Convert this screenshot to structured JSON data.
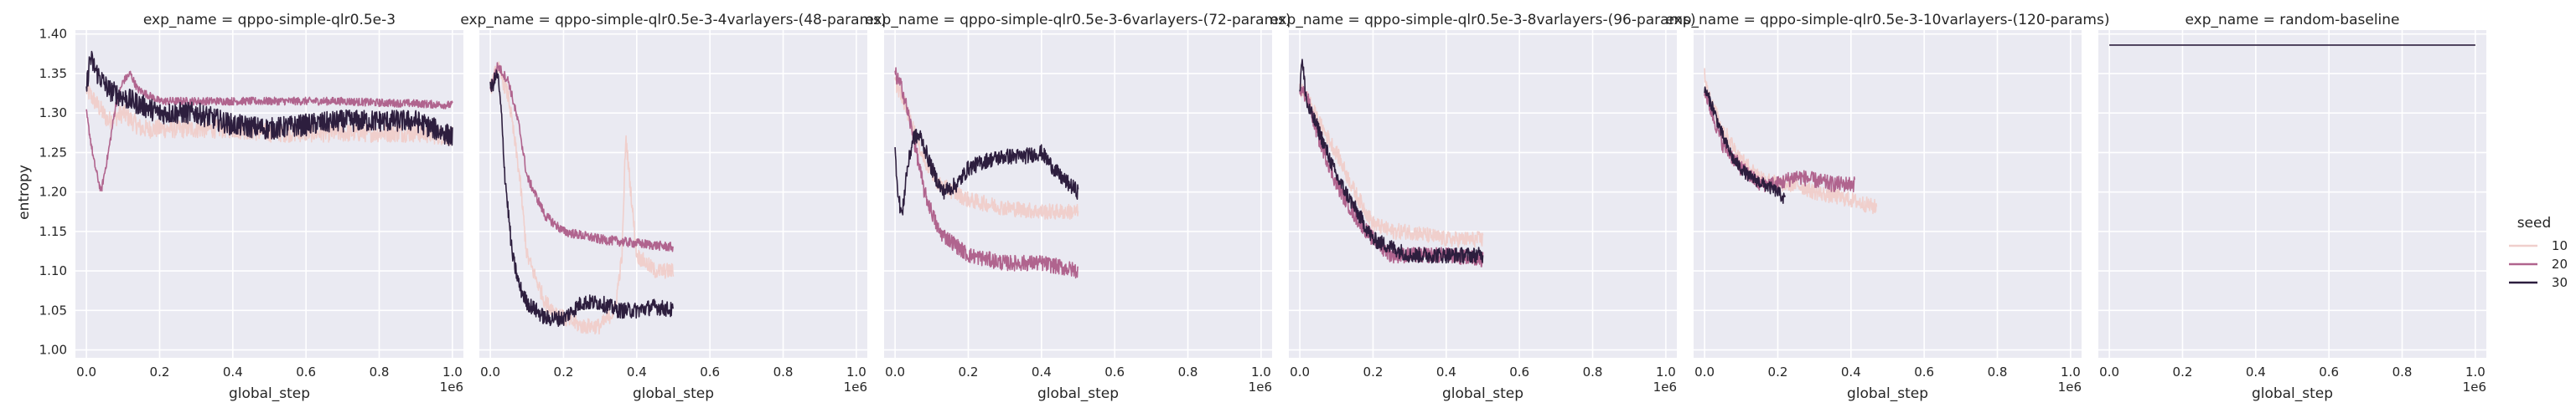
{
  "chart_data": {
    "type": "line",
    "ylabel": "entropy",
    "xlabel": "global_step",
    "x_offset_label": "1e6",
    "xlim": [
      -0.03,
      1.03
    ],
    "ylim": [
      0.99,
      1.405
    ],
    "x_ticks": [
      0.0,
      0.2,
      0.4,
      0.6,
      0.8,
      1.0
    ],
    "x_tick_labels": [
      "0.0",
      "0.2",
      "0.4",
      "0.6",
      "0.8",
      "1.0"
    ],
    "y_ticks": [
      1.0,
      1.05,
      1.1,
      1.15,
      1.2,
      1.25,
      1.3,
      1.35,
      1.4
    ],
    "y_tick_labels": [
      "1.00",
      "1.05",
      "1.10",
      "1.15",
      "1.20",
      "1.25",
      "1.30",
      "1.35",
      "1.40"
    ],
    "grid": true,
    "legend": {
      "title": "seed",
      "placement": "right",
      "entries": [
        {
          "label": "10",
          "color": "#f0cfcc"
        },
        {
          "label": "20",
          "color": "#b0648e"
        },
        {
          "label": "30",
          "color": "#2d1e3e"
        }
      ]
    },
    "panels": [
      {
        "title": "exp_name = qppo-simple-qlr0.5e-3",
        "series": [
          {
            "seed": "10",
            "noise": 0.012,
            "points": [
              [
                0.0,
                1.33
              ],
              [
                0.03,
                1.31
              ],
              [
                0.06,
                1.29
              ],
              [
                0.1,
                1.3
              ],
              [
                0.15,
                1.28
              ],
              [
                0.2,
                1.28
              ],
              [
                0.3,
                1.28
              ],
              [
                0.4,
                1.28
              ],
              [
                0.5,
                1.275
              ],
              [
                0.6,
                1.275
              ],
              [
                0.7,
                1.275
              ],
              [
                0.8,
                1.275
              ],
              [
                0.9,
                1.275
              ],
              [
                1.0,
                1.27
              ]
            ]
          },
          {
            "seed": "20",
            "noise": 0.005,
            "points": [
              [
                0.0,
                1.3
              ],
              [
                0.02,
                1.24
              ],
              [
                0.04,
                1.2
              ],
              [
                0.06,
                1.25
              ],
              [
                0.08,
                1.31
              ],
              [
                0.1,
                1.34
              ],
              [
                0.12,
                1.35
              ],
              [
                0.14,
                1.33
              ],
              [
                0.2,
                1.315
              ],
              [
                0.3,
                1.315
              ],
              [
                0.4,
                1.315
              ],
              [
                0.5,
                1.315
              ],
              [
                0.6,
                1.315
              ],
              [
                0.7,
                1.315
              ],
              [
                0.8,
                1.313
              ],
              [
                0.9,
                1.312
              ],
              [
                1.0,
                1.31
              ]
            ]
          },
          {
            "seed": "30",
            "noise": 0.014,
            "points": [
              [
                0.0,
                1.33
              ],
              [
                0.01,
                1.37
              ],
              [
                0.03,
                1.35
              ],
              [
                0.06,
                1.33
              ],
              [
                0.1,
                1.32
              ],
              [
                0.15,
                1.31
              ],
              [
                0.2,
                1.3
              ],
              [
                0.3,
                1.3
              ],
              [
                0.4,
                1.285
              ],
              [
                0.5,
                1.28
              ],
              [
                0.6,
                1.285
              ],
              [
                0.7,
                1.29
              ],
              [
                0.8,
                1.29
              ],
              [
                0.9,
                1.29
              ],
              [
                1.0,
                1.27
              ]
            ]
          }
        ]
      },
      {
        "title": "exp_name = qppo-simple-qlr0.5e-3-4varlayers-(48-params)",
        "series": [
          {
            "seed": "10",
            "noise": 0.01,
            "points": [
              [
                0.0,
                1.33
              ],
              [
                0.02,
                1.36
              ],
              [
                0.05,
                1.32
              ],
              [
                0.08,
                1.22
              ],
              [
                0.1,
                1.12
              ],
              [
                0.15,
                1.06
              ],
              [
                0.2,
                1.04
              ],
              [
                0.25,
                1.03
              ],
              [
                0.3,
                1.03
              ],
              [
                0.34,
                1.05
              ],
              [
                0.36,
                1.12
              ],
              [
                0.37,
                1.27
              ],
              [
                0.38,
                1.22
              ],
              [
                0.4,
                1.12
              ],
              [
                0.45,
                1.1
              ],
              [
                0.5,
                1.1
              ]
            ]
          },
          {
            "seed": "20",
            "noise": 0.006,
            "points": [
              [
                0.0,
                1.33
              ],
              [
                0.02,
                1.36
              ],
              [
                0.05,
                1.34
              ],
              [
                0.08,
                1.28
              ],
              [
                0.1,
                1.22
              ],
              [
                0.15,
                1.17
              ],
              [
                0.2,
                1.15
              ],
              [
                0.3,
                1.14
              ],
              [
                0.4,
                1.135
              ],
              [
                0.5,
                1.13
              ]
            ]
          },
          {
            "seed": "30",
            "noise": 0.01,
            "points": [
              [
                0.0,
                1.33
              ],
              [
                0.02,
                1.35
              ],
              [
                0.03,
                1.3
              ],
              [
                0.04,
                1.22
              ],
              [
                0.06,
                1.12
              ],
              [
                0.08,
                1.08
              ],
              [
                0.1,
                1.06
              ],
              [
                0.15,
                1.04
              ],
              [
                0.2,
                1.04
              ],
              [
                0.25,
                1.06
              ],
              [
                0.3,
                1.06
              ],
              [
                0.35,
                1.05
              ],
              [
                0.4,
                1.05
              ],
              [
                0.45,
                1.055
              ],
              [
                0.5,
                1.05
              ]
            ]
          }
        ]
      },
      {
        "title": "exp_name = qppo-simple-qlr0.5e-3-6varlayers-(72-params)",
        "series": [
          {
            "seed": "10",
            "noise": 0.01,
            "points": [
              [
                0.0,
                1.34
              ],
              [
                0.02,
                1.32
              ],
              [
                0.05,
                1.28
              ],
              [
                0.08,
                1.24
              ],
              [
                0.12,
                1.21
              ],
              [
                0.2,
                1.19
              ],
              [
                0.3,
                1.18
              ],
              [
                0.4,
                1.175
              ],
              [
                0.5,
                1.175
              ]
            ]
          },
          {
            "seed": "20",
            "noise": 0.01,
            "points": [
              [
                0.0,
                1.35
              ],
              [
                0.02,
                1.33
              ],
              [
                0.05,
                1.27
              ],
              [
                0.08,
                1.2
              ],
              [
                0.12,
                1.15
              ],
              [
                0.2,
                1.12
              ],
              [
                0.3,
                1.11
              ],
              [
                0.4,
                1.11
              ],
              [
                0.5,
                1.1
              ]
            ]
          },
          {
            "seed": "30",
            "noise": 0.01,
            "points": [
              [
                0.0,
                1.25
              ],
              [
                0.01,
                1.19
              ],
              [
                0.02,
                1.17
              ],
              [
                0.03,
                1.22
              ],
              [
                0.05,
                1.27
              ],
              [
                0.07,
                1.27
              ],
              [
                0.1,
                1.23
              ],
              [
                0.13,
                1.2
              ],
              [
                0.17,
                1.21
              ],
              [
                0.2,
                1.23
              ],
              [
                0.25,
                1.24
              ],
              [
                0.3,
                1.245
              ],
              [
                0.35,
                1.245
              ],
              [
                0.4,
                1.25
              ],
              [
                0.45,
                1.22
              ],
              [
                0.5,
                1.2
              ]
            ]
          }
        ]
      },
      {
        "title": "exp_name = qppo-simple-qlr0.5e-3-8varlayers-(96-params)",
        "series": [
          {
            "seed": "10",
            "noise": 0.01,
            "points": [
              [
                0.0,
                1.33
              ],
              [
                0.02,
                1.32
              ],
              [
                0.05,
                1.29
              ],
              [
                0.1,
                1.25
              ],
              [
                0.15,
                1.2
              ],
              [
                0.2,
                1.16
              ],
              [
                0.25,
                1.15
              ],
              [
                0.3,
                1.15
              ],
              [
                0.4,
                1.14
              ],
              [
                0.5,
                1.14
              ]
            ]
          },
          {
            "seed": "20",
            "noise": 0.01,
            "points": [
              [
                0.0,
                1.33
              ],
              [
                0.02,
                1.32
              ],
              [
                0.05,
                1.27
              ],
              [
                0.1,
                1.21
              ],
              [
                0.15,
                1.17
              ],
              [
                0.2,
                1.14
              ],
              [
                0.25,
                1.12
              ],
              [
                0.3,
                1.12
              ],
              [
                0.4,
                1.12
              ],
              [
                0.5,
                1.115
              ]
            ]
          },
          {
            "seed": "30",
            "noise": 0.01,
            "points": [
              [
                0.0,
                1.33
              ],
              [
                0.005,
                1.37
              ],
              [
                0.02,
                1.31
              ],
              [
                0.05,
                1.28
              ],
              [
                0.1,
                1.22
              ],
              [
                0.15,
                1.18
              ],
              [
                0.2,
                1.14
              ],
              [
                0.25,
                1.13
              ],
              [
                0.3,
                1.12
              ],
              [
                0.4,
                1.12
              ],
              [
                0.5,
                1.12
              ]
            ]
          }
        ]
      },
      {
        "title": "exp_name = qppo-simple-qlr0.5e-3-10varlayers-(120-params)",
        "series": [
          {
            "seed": "10",
            "noise": 0.01,
            "points": [
              [
                0.0,
                1.35
              ],
              [
                0.02,
                1.31
              ],
              [
                0.05,
                1.28
              ],
              [
                0.1,
                1.24
              ],
              [
                0.15,
                1.22
              ],
              [
                0.2,
                1.21
              ],
              [
                0.25,
                1.21
              ],
              [
                0.3,
                1.2
              ],
              [
                0.4,
                1.19
              ],
              [
                0.47,
                1.18
              ]
            ]
          },
          {
            "seed": "20",
            "noise": 0.01,
            "points": [
              [
                0.0,
                1.33
              ],
              [
                0.02,
                1.3
              ],
              [
                0.05,
                1.26
              ],
              [
                0.1,
                1.23
              ],
              [
                0.15,
                1.21
              ],
              [
                0.2,
                1.21
              ],
              [
                0.25,
                1.22
              ],
              [
                0.3,
                1.215
              ],
              [
                0.35,
                1.21
              ],
              [
                0.41,
                1.21
              ]
            ]
          },
          {
            "seed": "30",
            "noise": 0.008,
            "points": [
              [
                0.0,
                1.33
              ],
              [
                0.02,
                1.31
              ],
              [
                0.05,
                1.27
              ],
              [
                0.08,
                1.24
              ],
              [
                0.12,
                1.22
              ],
              [
                0.16,
                1.21
              ],
              [
                0.2,
                1.2
              ],
              [
                0.22,
                1.19
              ]
            ]
          }
        ]
      },
      {
        "title": "exp_name = random-baseline",
        "series": [
          {
            "seed": "30",
            "noise": 0.0,
            "points": [
              [
                0.0,
                1.386
              ],
              [
                1.0,
                1.386
              ]
            ]
          }
        ]
      }
    ]
  }
}
